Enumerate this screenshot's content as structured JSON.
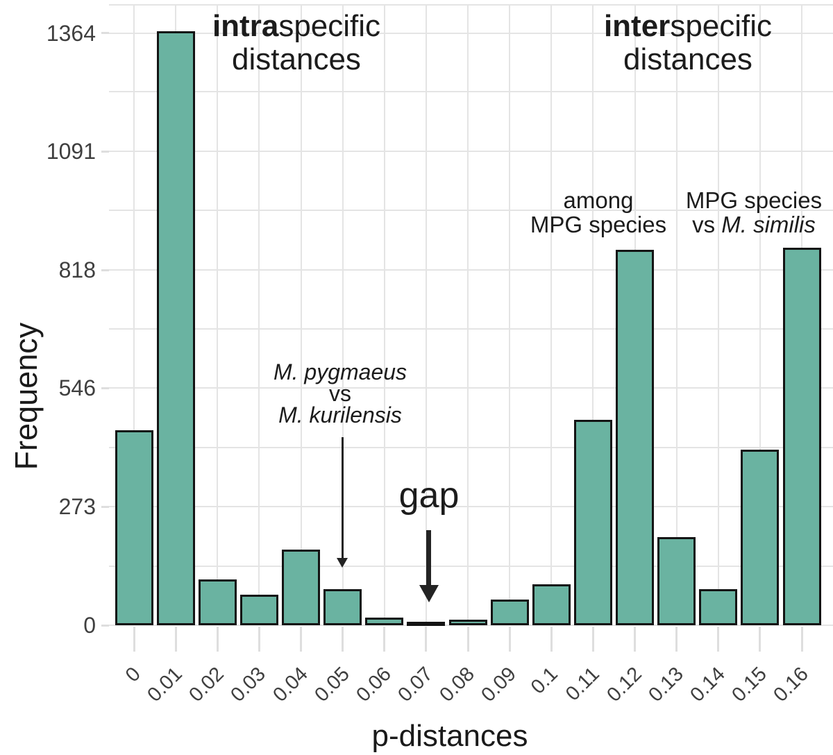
{
  "chart_data": {
    "type": "bar",
    "title": "",
    "xlabel": "p-distances",
    "ylabel": "Frequency",
    "categories": [
      "0",
      "0.01",
      "0.02",
      "0.03",
      "0.04",
      "0.05",
      "0.06",
      "0.07",
      "0.08",
      "0.09",
      "0.1",
      "0.11",
      "0.12",
      "0.13",
      "0.14",
      "0.15",
      "0.16"
    ],
    "values": [
      445,
      1364,
      100,
      66,
      170,
      78,
      13,
      3,
      8,
      55,
      90,
      468,
      860,
      198,
      78,
      400,
      865
    ],
    "yticks": [
      0,
      273,
      546,
      818,
      1091,
      1364
    ],
    "ylim": [
      0,
      1430
    ],
    "grid": true,
    "legend": "none",
    "bar_color": "#6AB3A1",
    "bar_border_color": "#141414",
    "grid_color": "#e4e4e4",
    "annotations": {
      "intra": {
        "bold": "intra",
        "rest": "specific",
        "line2": "distances"
      },
      "inter": {
        "bold": "inter",
        "rest": "specific",
        "line2": "distances"
      },
      "among": {
        "line1": "among",
        "line2": "MPG species"
      },
      "mpg_vs_similis": {
        "line1": "MPG species",
        "vs": "vs ",
        "italic": "M. similis"
      },
      "pygmaeus": {
        "line1": "M. pygmaeus",
        "vs": "vs",
        "line2": "M. kurilensis"
      },
      "gap_label": "gap"
    }
  }
}
